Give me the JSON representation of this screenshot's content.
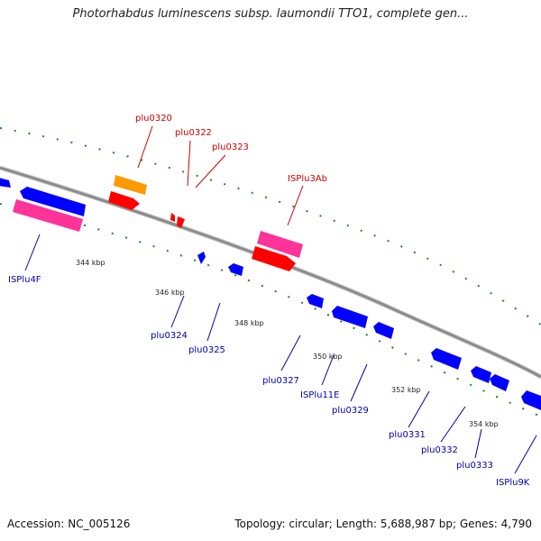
{
  "title": "Photorhabdus luminescens subsp. laumondii TTO1, complete gen...",
  "footer": {
    "accession": "Accession: NC_005126",
    "topology": "Topology: circular; Length: 5,688,987 bp; Genes: 4,790"
  },
  "colors": {
    "backbone": "#8c8c8c",
    "tick_marks": "#1a8a1a",
    "forward_label": "#cc0000",
    "reverse_label": "#0000aa",
    "gene_red": "#ff0000",
    "gene_orange": "#ff9900",
    "gene_pink": "#ff3399",
    "gene_blue": "#0000ff"
  },
  "tick_labels": [
    "344 kbp",
    "346 kbp",
    "348 kbp",
    "350 kbp",
    "352 kbp",
    "354 kbp"
  ],
  "forward_labels": [
    "plu0320",
    "plu0322",
    "plu0323",
    "ISPlu3Ab"
  ],
  "reverse_labels": [
    "ISPlu4F",
    "plu0324",
    "plu0325",
    "plu0327",
    "ISPlu11E",
    "plu0329",
    "plu0331",
    "plu0332",
    "plu0333",
    "ISPlu9K"
  ]
}
